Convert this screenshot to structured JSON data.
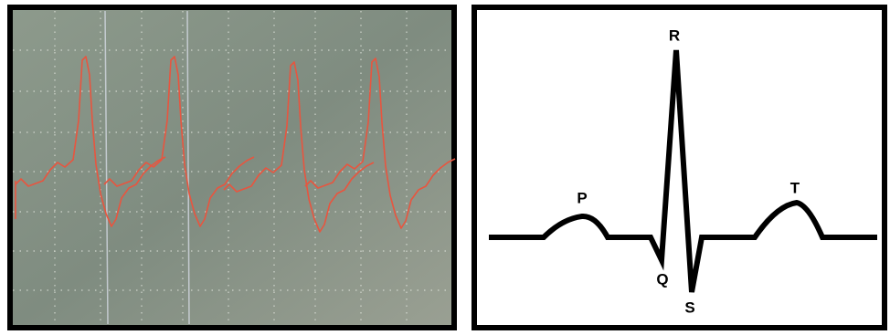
{
  "diagram": {
    "labels": {
      "p": "P",
      "q": "Q",
      "r": "R",
      "s": "S",
      "t": "T"
    }
  }
}
